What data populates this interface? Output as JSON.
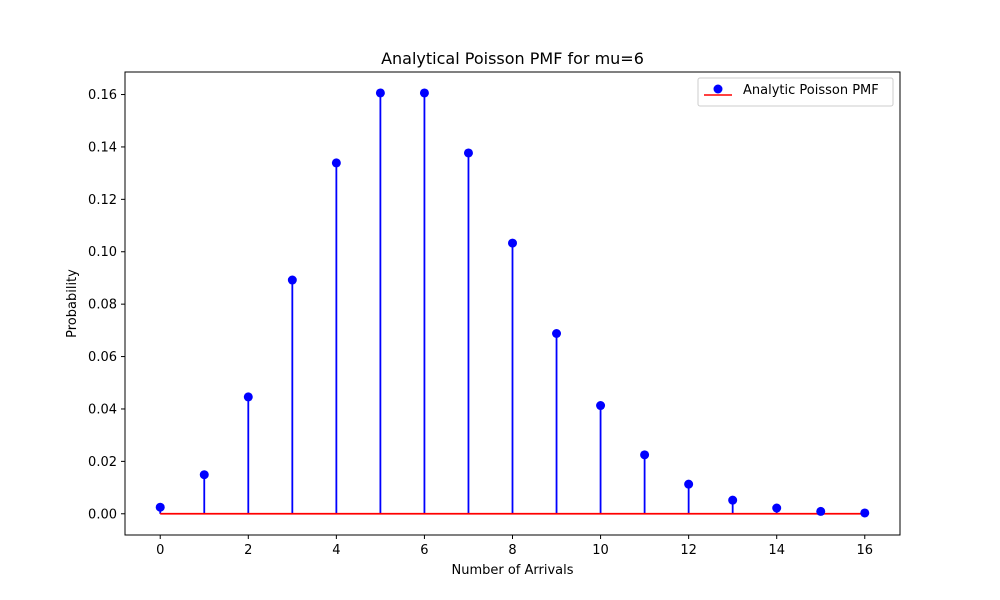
{
  "chart_data": {
    "type": "stem",
    "title": "Analytical Poisson PMF for mu=6",
    "xlabel": "Number of Arrivals",
    "ylabel": "Probability",
    "xlim": [
      -0.8,
      16.8
    ],
    "ylim": [
      -0.0081,
      0.1686
    ],
    "xticks": [
      0,
      2,
      4,
      6,
      8,
      10,
      12,
      14,
      16
    ],
    "xtick_labels": [
      "0",
      "2",
      "4",
      "6",
      "8",
      "10",
      "12",
      "14",
      "16"
    ],
    "yticks": [
      0.0,
      0.02,
      0.04,
      0.06,
      0.08,
      0.1,
      0.12,
      0.14,
      0.16
    ],
    "ytick_labels": [
      "0.00",
      "0.02",
      "0.04",
      "0.06",
      "0.08",
      "0.10",
      "0.12",
      "0.14",
      "0.16"
    ],
    "grid": false,
    "legend_position": "top-right",
    "series": [
      {
        "name": "Analytic Poisson PMF",
        "x": [
          0,
          1,
          2,
          3,
          4,
          5,
          6,
          7,
          8,
          9,
          10,
          11,
          12,
          13,
          14,
          15,
          16
        ],
        "values": [
          0.0025,
          0.0149,
          0.0446,
          0.0892,
          0.1339,
          0.1606,
          0.1606,
          0.1377,
          0.1033,
          0.0688,
          0.0413,
          0.0225,
          0.0113,
          0.0052,
          0.0022,
          0.0009,
          0.0003
        ]
      }
    ],
    "colors": {
      "markers": "#0000ff",
      "stems": "#0000ff",
      "baseline": "#ff0000",
      "axes": "#000000"
    }
  }
}
